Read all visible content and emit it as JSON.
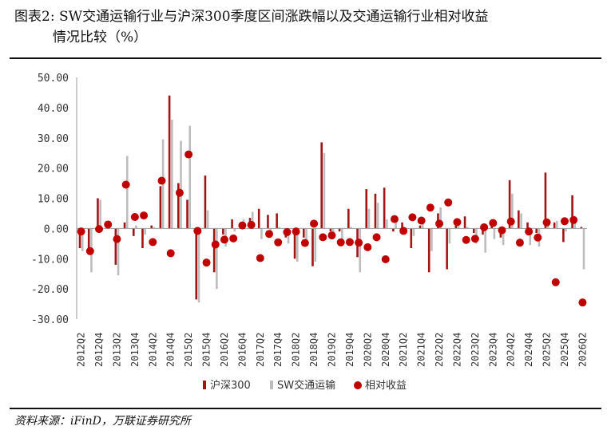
{
  "title": {
    "line1": "图表2:  SW交通运输行业与沪深300季度区间涨跌幅以及交通运输行业相对收益",
    "line2": "情况比较（%）"
  },
  "source": "资料来源：iFinD，万联证券研究所",
  "colors": {
    "hs300": "#A31515",
    "sw": "#BDBDBD",
    "relative": "#C00000",
    "axis": "#999999"
  },
  "chart_data": {
    "type": "bar",
    "ylim": [
      -30,
      50
    ],
    "yticks": [
      "50.00",
      "40.00",
      "30.00",
      "20.00",
      "10.00",
      "0.00",
      "-10.00",
      "-20.00",
      "-30.00"
    ],
    "ytick_values": [
      50,
      40,
      30,
      20,
      10,
      0,
      -10,
      -20,
      -30
    ],
    "grid": false,
    "legend_position": "bottom",
    "categories": [
      "2012Q2",
      "2012Q3",
      "2012Q4",
      "2013Q1",
      "2013Q2",
      "2013Q3",
      "2013Q4",
      "2014Q1",
      "2014Q2",
      "2014Q3",
      "2014Q4",
      "2015Q1",
      "2015Q2",
      "2015Q3",
      "2015Q4",
      "2016Q1",
      "2016Q2",
      "2016Q3",
      "2016Q4",
      "2017Q1",
      "2017Q2",
      "2017Q3",
      "2017Q4",
      "2018Q1",
      "2018Q2",
      "2018Q3",
      "2018Q4",
      "2019Q1",
      "2019Q2",
      "2019Q3",
      "2019Q4",
      "2020Q1",
      "2020Q2",
      "2020Q3",
      "2020Q4",
      "2021Q1",
      "2021Q2",
      "2021Q3",
      "2021Q4",
      "2022Q1",
      "2022Q2",
      "2022Q3",
      "2022Q4",
      "2023Q1",
      "2023Q2",
      "2023Q3",
      "2023Q4",
      "2024Q1",
      "2024Q2",
      "2024Q3",
      "2024Q4",
      "2025Q1",
      "2025Q2",
      "2025Q3",
      "2025Q4",
      "2026Q1",
      "2026Q2"
    ],
    "xtick_labels": [
      "2012Q2",
      "2012Q4",
      "2013Q2",
      "2013Q4",
      "2014Q2",
      "2014Q4",
      "2015Q2",
      "2015Q4",
      "2016Q2",
      "2016Q4",
      "2017Q2",
      "2017Q4",
      "2018Q2",
      "2018Q4",
      "2019Q2",
      "2019Q4",
      "2020Q2",
      "2020Q4",
      "2021Q2",
      "2021Q4",
      "2022Q2",
      "2022Q4",
      "2023Q2",
      "2023Q4",
      "2024Q2",
      "2024Q4",
      "2025Q2",
      "2025Q4",
      "2026Q2"
    ],
    "series": [
      {
        "name": "沪深300",
        "kind": "bar",
        "values": [
          -6.5,
          -7.0,
          10.0,
          0.5,
          -12.0,
          2.0,
          -2.5,
          -6.5,
          1.0,
          14.0,
          44.0,
          15.0,
          9.5,
          -23.5,
          17.5,
          -14.5,
          -2.0,
          3.0,
          1.5,
          3.5,
          6.5,
          4.5,
          5.0,
          -3.0,
          -10.0,
          -3.0,
          -12.5,
          28.5,
          -1.0,
          -1.0,
          6.5,
          -9.5,
          13.0,
          11.5,
          13.5,
          -1.0,
          2.0,
          -6.5,
          1.0,
          -14.5,
          5.0,
          -13.5,
          1.0,
          4.0,
          -1.5,
          -2.0,
          2.0,
          -3.0,
          16.0,
          6.0,
          2.0,
          -1.5,
          18.5,
          2.0,
          -4.5,
          11.0,
          0.5
        ]
      },
      {
        "name": "SW交通运输",
        "kind": "bar",
        "values": [
          -7.5,
          -14.5,
          9.5,
          1.0,
          -15.5,
          24.0,
          1.0,
          -2.0,
          0.5,
          29.5,
          36.0,
          29.0,
          34.0,
          -24.5,
          6.0,
          -20.0,
          -6.0,
          -1.0,
          3.0,
          5.5,
          -3.5,
          -0.5,
          0.5,
          -5.0,
          -11.0,
          -6.0,
          -11.0,
          25.0,
          -2.0,
          -5.5,
          0.5,
          -14.5,
          6.5,
          8.5,
          3.0,
          2.0,
          -0.5,
          -2.5,
          3.5,
          -7.5,
          7.0,
          -5.0,
          3.0,
          0.5,
          -5.0,
          -8.0,
          -3.5,
          -5.5,
          11.5,
          5.0,
          -5.5,
          -6.0,
          1.0,
          2.5,
          -1.0,
          3.5,
          -13.5
        ]
      },
      {
        "name": "相对收益",
        "kind": "marker",
        "values": [
          -1.0,
          -7.5,
          -0.2,
          1.3,
          -3.5,
          14.5,
          3.8,
          4.3,
          -4.5,
          15.8,
          -8.2,
          11.8,
          24.5,
          -0.8,
          -11.3,
          -5.3,
          -3.7,
          -3.3,
          1.0,
          1.2,
          -9.8,
          -1.8,
          -4.6,
          -1.2,
          -1.0,
          -4.8,
          1.6,
          -2.9,
          -2.3,
          -4.6,
          -4.5,
          -4.7,
          -6.2,
          -2.9,
          -10.2,
          3.1,
          -0.8,
          3.7,
          2.6,
          6.9,
          1.6,
          8.6,
          2.1,
          -3.8,
          -3.4,
          0.4,
          1.8,
          -0.6,
          2.3,
          -4.7,
          -1.0,
          -3.0,
          2.0,
          -17.8,
          2.4,
          2.8,
          -24.5
        ]
      }
    ]
  }
}
